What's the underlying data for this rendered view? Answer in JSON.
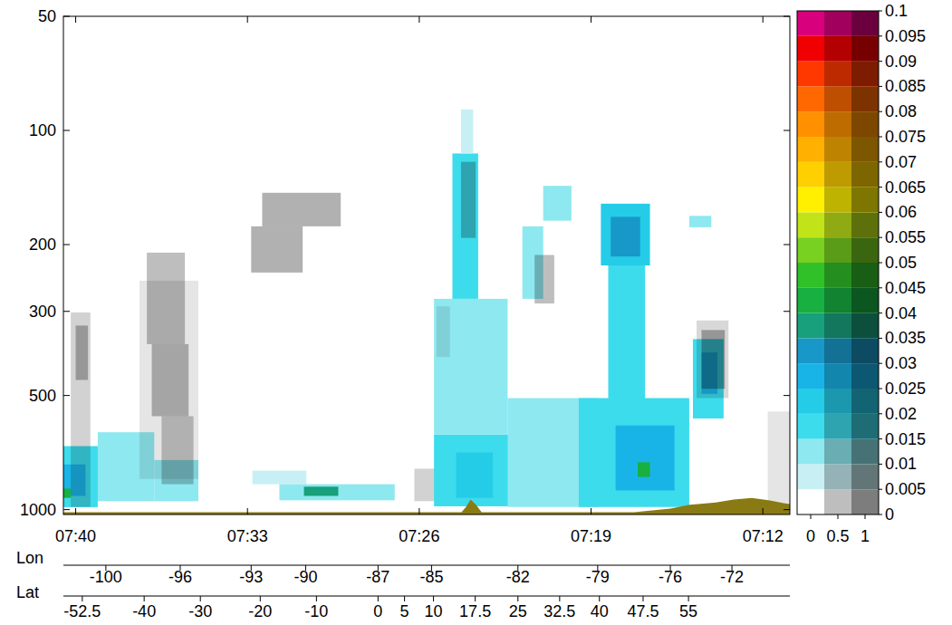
{
  "chart_data": {
    "type": "heatmap",
    "log": "y",
    "xlim": [
      40.5,
      10.9
    ],
    "xticks": [
      {
        "value": 40,
        "label": "07:40"
      },
      {
        "value": 33,
        "label": "07:33"
      },
      {
        "value": 26,
        "label": "07:26"
      },
      {
        "value": 19,
        "label": "07:19"
      },
      {
        "value": 12,
        "label": "07:12"
      }
    ],
    "ylim": [
      1030,
      50
    ],
    "yticks": [
      50,
      100,
      200,
      300,
      500,
      1000
    ],
    "lon": {
      "label": "Lon",
      "x": [
        38.77,
        35.74,
        32.85,
        30.63,
        27.68,
        25.5,
        21.98,
        18.73,
        15.77,
        13.26
      ],
      "values": [
        -100,
        -96,
        -93,
        -90,
        -87,
        -85,
        -82,
        -79,
        -76,
        -72
      ]
    },
    "lat": {
      "label": "Lat",
      "x": [
        39.73,
        37.21,
        34.92,
        32.48,
        30.19,
        27.68,
        26.6,
        25.42,
        23.72,
        21.98,
        20.28,
        18.66,
        16.88,
        15.03
      ],
      "values": [
        -52.5,
        -40,
        -30,
        -20,
        -10,
        0,
        5,
        10,
        17.5,
        25,
        32.5,
        40,
        47.5,
        55
      ]
    },
    "cells": [
      {
        "x0": 39.1,
        "x1": 36.8,
        "y0": 625,
        "y1": 950,
        "value": 0.012
      },
      {
        "x0": 36.8,
        "x1": 35.0,
        "y0": 740,
        "y1": 950,
        "value": 0.01
      },
      {
        "x0": 40.5,
        "x1": 39.1,
        "y0": 680,
        "y1": 985,
        "value": 0.018
      },
      {
        "x0": 40.5,
        "x1": 39.6,
        "y0": 760,
        "y1": 920,
        "value": 0.028
      },
      {
        "x0": 40.5,
        "x1": 40.2,
        "y0": 880,
        "y1": 931,
        "value": 0.04
      },
      {
        "x0": 32.8,
        "x1": 30.6,
        "y0": 789,
        "y1": 857,
        "value": 0.008
      },
      {
        "x0": 31.7,
        "x1": 27.0,
        "y0": 857,
        "y1": 945,
        "value": 0.012
      },
      {
        "x0": 30.7,
        "x1": 29.3,
        "y0": 870,
        "y1": 920,
        "value": 0.035
      },
      {
        "x0": 25.4,
        "x1": 20.2,
        "y0": 634,
        "y1": 980,
        "value": 0.016
      },
      {
        "x0": 25.4,
        "x1": 22.4,
        "y0": 278,
        "y1": 634,
        "value": 0.014
      },
      {
        "x0": 24.5,
        "x1": 23.0,
        "y0": 707,
        "y1": 931,
        "value": 0.022
      },
      {
        "x0": 24.65,
        "x1": 23.6,
        "y0": 115,
        "y1": 278,
        "value": 0.015
      },
      {
        "x0": 24.3,
        "x1": 23.8,
        "y0": 88,
        "y1": 115,
        "value": 0.008
      },
      {
        "x0": 20.95,
        "x1": 19.8,
        "y0": 140,
        "y1": 173,
        "value": 0.012
      },
      {
        "x0": 21.8,
        "x1": 20.95,
        "y0": 179,
        "y1": 278,
        "value": 0.012
      },
      {
        "x0": 22.4,
        "x1": 18.7,
        "y0": 508,
        "y1": 984,
        "value": 0.012
      },
      {
        "x0": 19.5,
        "x1": 15.0,
        "y0": 508,
        "y1": 984,
        "value": 0.018
      },
      {
        "x0": 18.0,
        "x1": 15.6,
        "y0": 600,
        "y1": 890,
        "value": 0.026
      },
      {
        "x0": 17.1,
        "x1": 16.6,
        "y0": 750,
        "y1": 820,
        "value": 0.04
      },
      {
        "x0": 18.3,
        "x1": 16.8,
        "y0": 223,
        "y1": 532,
        "value": 0.016
      },
      {
        "x0": 18.6,
        "x1": 16.6,
        "y0": 156,
        "y1": 227,
        "value": 0.024
      },
      {
        "x0": 18.2,
        "x1": 17.0,
        "y0": 169,
        "y1": 215,
        "value": 0.034
      },
      {
        "x0": 14.85,
        "x1": 13.6,
        "y0": 355,
        "y1": 575,
        "value": 0.018
      },
      {
        "x0": 14.5,
        "x1": 13.85,
        "y0": 385,
        "y1": 495,
        "value": 0.028
      },
      {
        "x0": 15.0,
        "x1": 14.1,
        "y0": 168,
        "y1": 180,
        "value": 0.01
      }
    ],
    "grey_cells": [
      {
        "x0": 37.4,
        "x1": 35.0,
        "y0": 249,
        "y1": 830,
        "value": 0.2
      },
      {
        "x0": 37.1,
        "x1": 35.55,
        "y0": 210,
        "y1": 366,
        "value": 0.5
      },
      {
        "x0": 36.9,
        "x1": 35.4,
        "y0": 366,
        "y1": 567,
        "value": 0.55
      },
      {
        "x0": 36.5,
        "x1": 35.2,
        "y0": 567,
        "y1": 857,
        "value": 0.45
      },
      {
        "x0": 40.2,
        "x1": 39.4,
        "y0": 302,
        "y1": 984,
        "value": 0.35
      },
      {
        "x0": 40.0,
        "x1": 39.5,
        "y0": 327,
        "y1": 455,
        "value": 0.55
      },
      {
        "x0": 32.4,
        "x1": 29.2,
        "y0": 146,
        "y1": 179,
        "value": 0.6
      },
      {
        "x0": 32.85,
        "x1": 30.75,
        "y0": 179,
        "y1": 237,
        "value": 0.6
      },
      {
        "x0": 26.2,
        "x1": 25.4,
        "y0": 780,
        "y1": 950,
        "value": 0.35
      },
      {
        "x0": 24.3,
        "x1": 23.7,
        "y0": 121,
        "y1": 192,
        "value": 0.5
      },
      {
        "x0": 21.3,
        "x1": 20.5,
        "y0": 213,
        "y1": 286,
        "value": 0.5
      },
      {
        "x0": 14.7,
        "x1": 13.4,
        "y0": 317,
        "y1": 508,
        "value": 0.3
      },
      {
        "x0": 14.5,
        "x1": 13.55,
        "y0": 336,
        "y1": 480,
        "value": 0.6
      },
      {
        "x0": 25.3,
        "x1": 24.75,
        "y0": 291,
        "y1": 396,
        "value": 0.2
      },
      {
        "x0": 11.8,
        "x1": 10.9,
        "y0": 551,
        "y1": 984,
        "value": 0.2
      }
    ],
    "surface": {
      "x": [
        40.5,
        35.74,
        28.34,
        24.28,
        24.09,
        23.91,
        23.68,
        23.46,
        20.95,
        17.25,
        15.77,
        15.03,
        13.92,
        13.19,
        12.45,
        11.71,
        11.15,
        10.9
      ],
      "values": [
        1016,
        1016,
        1016,
        1016,
        983,
        941,
        972,
        1016,
        1016,
        1016,
        994,
        972,
        957,
        941,
        931,
        946,
        962,
        967
      ]
    },
    "colorbar": {
      "range": [
        0,
        0.1
      ],
      "ticks": [
        0,
        0.005,
        0.01,
        0.015,
        0.02,
        0.025,
        0.03,
        0.035,
        0.04,
        0.045,
        0.05,
        0.055,
        0.06,
        0.065,
        0.07,
        0.075,
        0.08,
        0.085,
        0.09,
        0.095,
        0.1
      ],
      "colors": [
        "#ffffff",
        "#c8f0f4",
        "#8ee8f0",
        "#3cdcec",
        "#24cce8",
        "#18b4e8",
        "#1898c8",
        "#18a07c",
        "#18b040",
        "#30c028",
        "#78d020",
        "#c0e418",
        "#fff000",
        "#ffd000",
        "#ffb000",
        "#ff9000",
        "#ff6800",
        "#ff3800",
        "#f00000",
        "#d8007c"
      ]
    },
    "grey_colorbar": {
      "range": [
        0,
        1
      ],
      "ticks": [
        0,
        0.5,
        1
      ]
    }
  }
}
